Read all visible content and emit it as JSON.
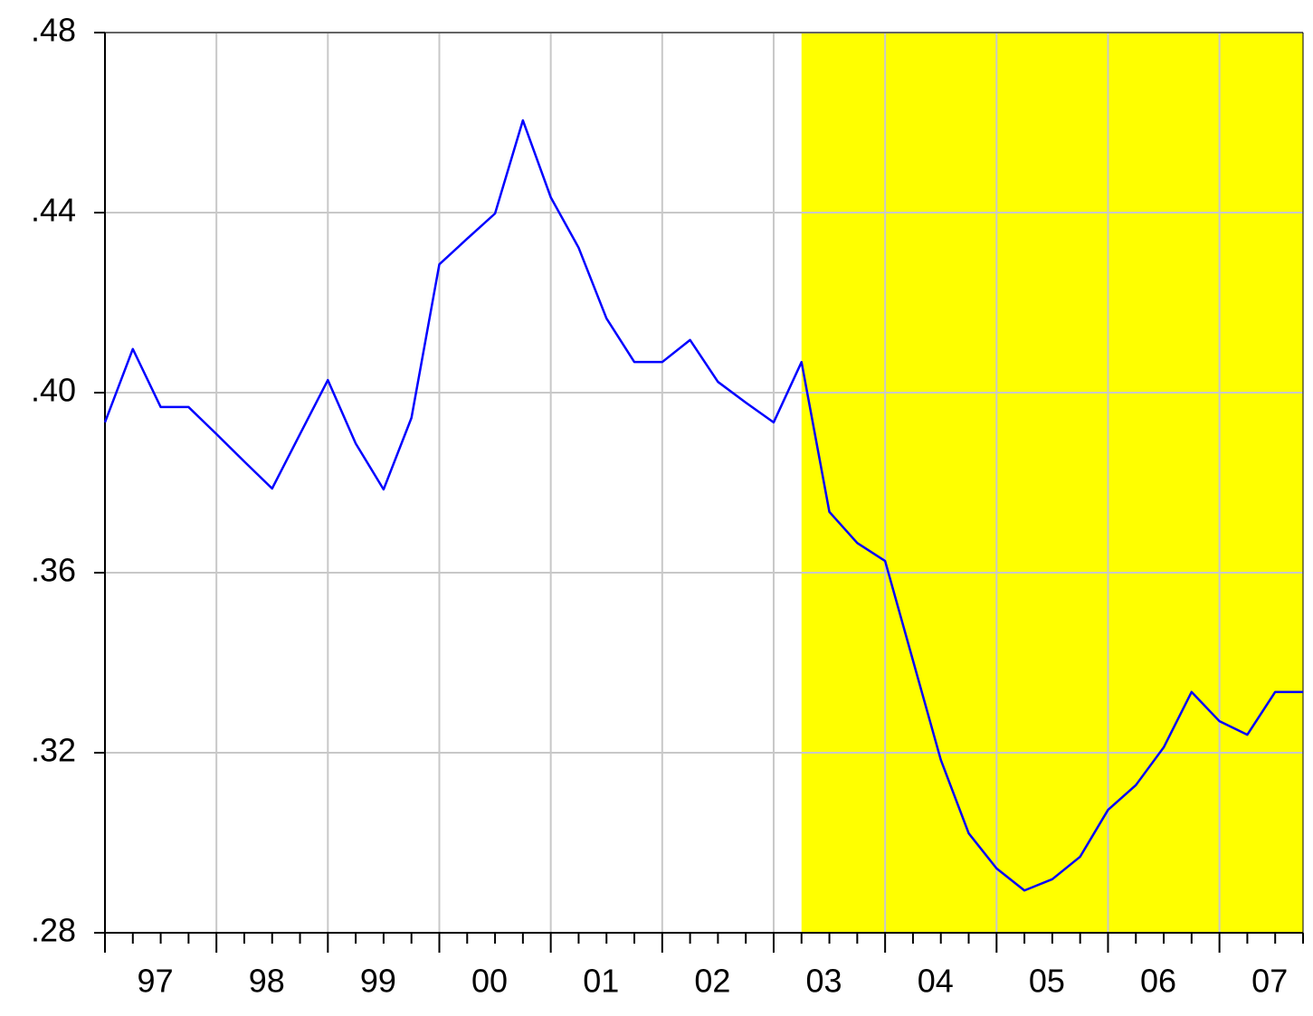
{
  "chart_data": {
    "type": "line",
    "categories": [
      "97",
      null,
      null,
      null,
      "98",
      null,
      null,
      null,
      "99",
      null,
      null,
      null,
      "00",
      null,
      null,
      null,
      "01",
      null,
      null,
      null,
      "02",
      null,
      null,
      null,
      "03",
      null,
      null,
      null,
      "04",
      null,
      null,
      null,
      "05",
      null,
      null,
      null,
      "06",
      null,
      null,
      null,
      "07",
      null,
      null,
      null
    ],
    "series": [
      {
        "color": "#0000ff",
        "values": [
          0.3934,
          0.4097,
          0.3968,
          0.3968,
          0.3908,
          0.3847,
          0.3787,
          0.3908,
          0.4028,
          0.3887,
          0.3785,
          0.3944,
          0.4285,
          0.4342,
          0.4398,
          0.4605,
          0.4434,
          0.4322,
          0.4165,
          0.4068,
          0.4068,
          0.4117,
          0.4024,
          0.3978,
          0.3934,
          0.4068,
          0.3735,
          0.3666,
          0.3626,
          0.3405,
          0.3184,
          0.3021,
          0.2943,
          0.2894,
          0.2919,
          0.2969,
          0.3073,
          0.3128,
          0.3212,
          0.3335,
          0.327,
          0.324,
          0.3335,
          0.3335
        ]
      }
    ],
    "ylim": [
      0.28,
      0.48
    ],
    "yticks": [
      {
        "value": 0.28,
        "label": ".28"
      },
      {
        "value": 0.32,
        "label": ".32"
      },
      {
        "value": 0.36,
        "label": ".36"
      },
      {
        "value": 0.4,
        "label": ".40"
      },
      {
        "value": 0.44,
        "label": ".44"
      },
      {
        "value": 0.48,
        "label": ".48"
      }
    ],
    "grid": true,
    "shade": {
      "from": 25,
      "to": 43,
      "color": "#ffff00"
    }
  }
}
